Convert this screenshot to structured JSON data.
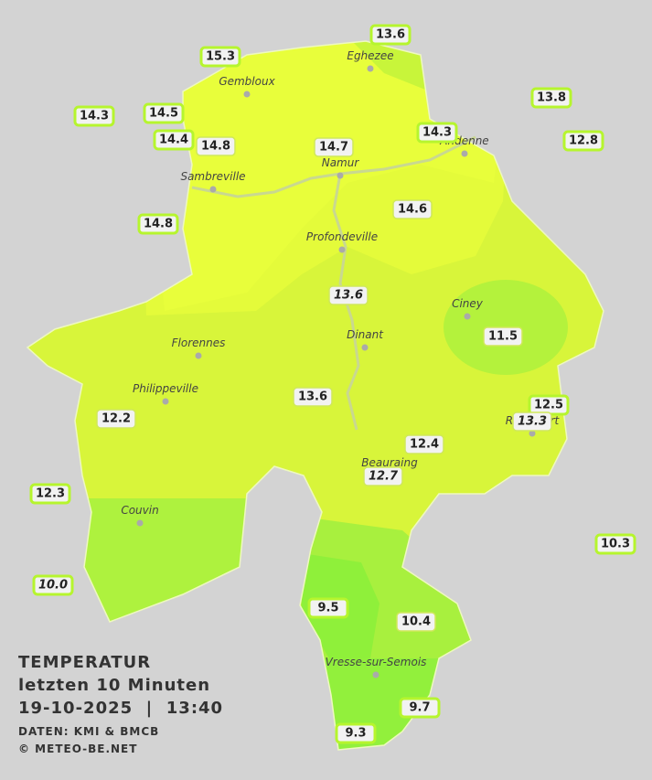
{
  "legend": {
    "title": "TEMPERATUR",
    "subtitle": "letzten 10 Minuten",
    "datetime": "19-10-2025  |  13:40",
    "source": "DATEN: KMI & BMCB",
    "copyright": "© METEO-BE.NET"
  },
  "cities": [
    "Eghezee",
    "Gembloux",
    "Andenne",
    "Namur",
    "Sambreville",
    "Profondeville",
    "Ciney",
    "Dinant",
    "Florennes",
    "Philippeville",
    "Rochefort",
    "Beauraing",
    "Couvin",
    "Vresse-sur-Semois"
  ],
  "stations": [
    "13.6",
    "15.3",
    "13.8",
    "14.3",
    "14.5",
    "14.3",
    "12.8",
    "14.4",
    "14.8",
    "14.7",
    "14.6",
    "14.8",
    "13.6",
    "11.5",
    "12.5",
    "13.6",
    "13.3",
    "12.2",
    "12.4",
    "12.7",
    "12.3",
    "10.3",
    "10.0",
    "9.5",
    "10.4",
    "9.7",
    "9.3"
  ]
}
